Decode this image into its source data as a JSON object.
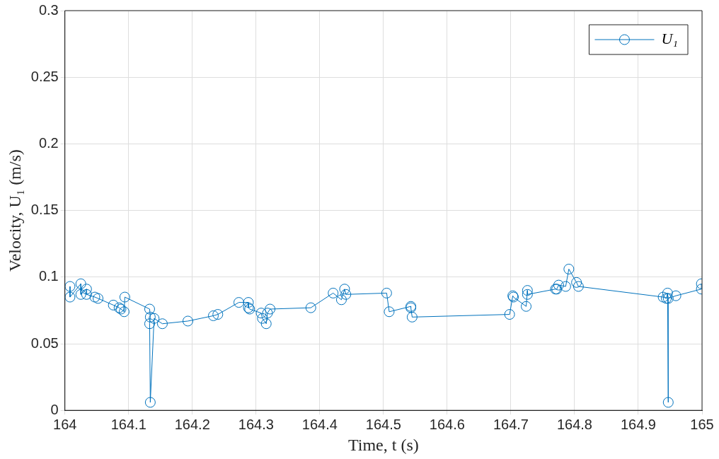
{
  "chart_data": {
    "type": "line",
    "xlabel": "Time, t (s)",
    "ylabel": "Velocity, U₁ (m/s)",
    "xlim": [
      164,
      165
    ],
    "xticks": [
      164,
      164.1,
      164.2,
      164.3,
      164.4,
      164.5,
      164.6,
      164.7,
      164.8,
      164.9,
      165
    ],
    "ylim": [
      0,
      0.3
    ],
    "yticks": [
      0,
      0.05,
      0.1,
      0.15,
      0.2,
      0.25,
      0.3
    ],
    "grid": true,
    "legend": "top right",
    "marker": "circle",
    "line_style": "solid",
    "x": [
      164.008,
      164.008,
      164.025,
      164.025,
      164.034,
      164.034,
      164.047,
      164.052,
      164.076,
      164.085,
      164.088,
      164.093,
      164.094,
      164.133,
      164.134,
      164.133,
      164.134,
      164.14,
      164.153,
      164.193,
      164.233,
      164.24,
      164.273,
      164.288,
      164.288,
      164.29,
      164.308,
      164.31,
      164.316,
      164.318,
      164.322,
      164.386,
      164.421,
      164.434,
      164.439,
      164.441,
      164.505,
      164.509,
      164.543,
      164.543,
      164.545,
      164.698,
      164.703,
      164.704,
      164.724,
      164.726,
      164.726,
      164.77,
      164.772,
      164.775,
      164.786,
      164.791,
      164.803,
      164.806,
      164.939,
      164.944,
      164.946,
      164.947,
      164.947,
      164.959,
      164.999,
      164.999
    ],
    "series": [
      {
        "name": "U₁",
        "color": "#0072bd",
        "values": [
          0.093,
          0.085,
          0.095,
          0.087,
          0.091,
          0.087,
          0.085,
          0.084,
          0.079,
          0.077,
          0.076,
          0.074,
          0.085,
          0.076,
          0.07,
          0.065,
          0.006,
          0.069,
          0.065,
          0.067,
          0.071,
          0.072,
          0.081,
          0.081,
          0.077,
          0.076,
          0.073,
          0.069,
          0.065,
          0.073,
          0.076,
          0.077,
          0.088,
          0.083,
          0.091,
          0.087,
          0.088,
          0.074,
          0.078,
          0.077,
          0.07,
          0.072,
          0.086,
          0.085,
          0.078,
          0.09,
          0.087,
          0.091,
          0.091,
          0.094,
          0.093,
          0.106,
          0.096,
          0.093,
          0.085,
          0.084,
          0.088,
          0.006,
          0.084,
          0.086,
          0.091,
          0.095
        ]
      }
    ]
  }
}
